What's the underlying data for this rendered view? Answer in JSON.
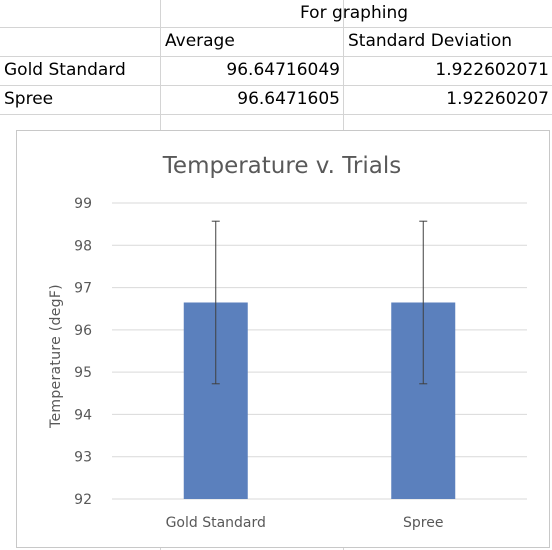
{
  "table": {
    "section_header": "For graphing",
    "col_average": "Average",
    "col_std": "Standard Deviation",
    "rows": [
      {
        "label": "Gold Standard",
        "average": "96.64716049",
        "std": "1.922602071"
      },
      {
        "label": "Spree",
        "average": "96.6471605",
        "std": "1.92260207"
      }
    ]
  },
  "chart_data": {
    "type": "bar",
    "title": "Temperature v. Trials",
    "xlabel": "",
    "ylabel": "Temperature (degF)",
    "categories": [
      "Gold Standard",
      "Spree"
    ],
    "values": [
      96.64716049,
      96.6471605
    ],
    "error": [
      1.922602071,
      1.92260207
    ],
    "ylim": [
      92,
      99
    ],
    "yticks": [
      92,
      93,
      94,
      95,
      96,
      97,
      98,
      99
    ],
    "grid": true,
    "legend": "none",
    "bar_color": "#5b80bd"
  }
}
